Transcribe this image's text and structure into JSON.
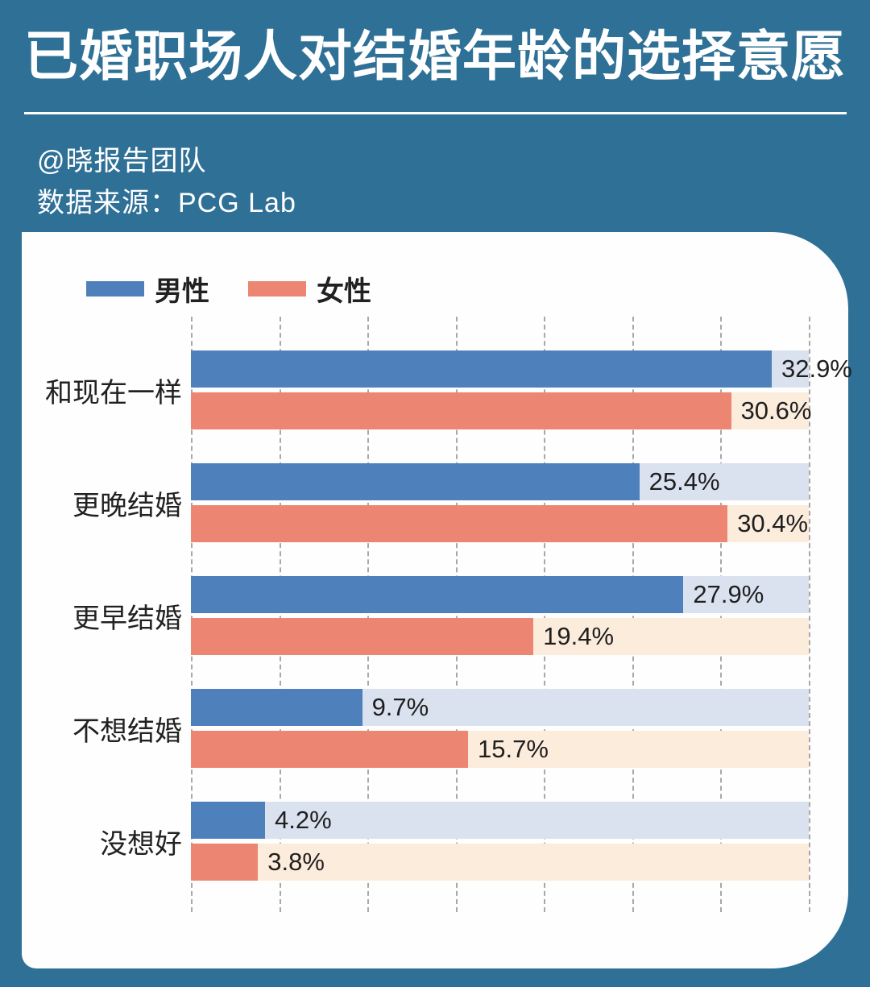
{
  "header": {
    "title": "已婚职场人对结婚年龄的选择意愿",
    "byline": "@晓报告团队",
    "source": "数据来源：PCG Lab"
  },
  "legend": {
    "male_label": "男性",
    "female_label": "女性"
  },
  "colors": {
    "background": "#2f7096",
    "card": "#fefefe",
    "male_bar": "#4e81bb",
    "female_bar": "#ec8672",
    "male_track": "#dae1ef",
    "female_track": "#fcecdc",
    "gridline": "#9a9a9a",
    "text": "#212121",
    "title_text": "#ffffff"
  },
  "chart_data": {
    "type": "bar",
    "orientation": "horizontal",
    "title": "已婚职场人对结婚年龄的选择意愿",
    "categories": [
      "和现在一样",
      "更晚结婚",
      "更早结婚",
      "不想结婚",
      "没想好"
    ],
    "series": [
      {
        "name": "男性",
        "color": "#4e81bb",
        "values": [
          32.9,
          25.4,
          27.9,
          9.7,
          4.2
        ]
      },
      {
        "name": "女性",
        "color": "#ec8672",
        "values": [
          30.6,
          30.4,
          19.4,
          15.7,
          3.8
        ]
      }
    ],
    "value_suffix": "%",
    "value_labels": "outside-end",
    "xlim": [
      0,
      35
    ],
    "gridline_interval": 5,
    "grid": "dashed-vertical",
    "legend_position": "top-left",
    "axis_tick_labels_visible": false
  }
}
